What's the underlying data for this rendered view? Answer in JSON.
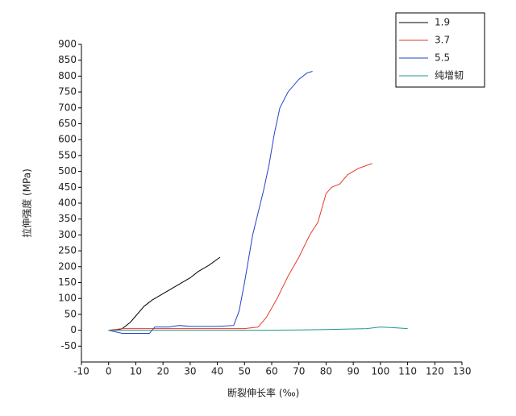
{
  "chart_data": {
    "type": "line",
    "xlabel": "断裂伸长率 (‰)",
    "ylabel": "拉伸强度 (MPa)",
    "xlim": [
      -10,
      130
    ],
    "xticks": [
      -10,
      0,
      10,
      20,
      30,
      40,
      50,
      60,
      70,
      80,
      90,
      100,
      110,
      120,
      130
    ],
    "ylim": [
      -100,
      900
    ],
    "yticks": [
      -50,
      0,
      50,
      100,
      150,
      200,
      250,
      300,
      350,
      400,
      450,
      500,
      550,
      600,
      650,
      700,
      750,
      800,
      850,
      900
    ],
    "legend": "upper right",
    "series": [
      {
        "name": "1.9",
        "color": "#000000",
        "x": [
          0,
          3,
          5,
          8,
          10,
          13,
          16,
          20,
          25,
          30,
          33,
          37,
          41
        ],
        "values": [
          0,
          0,
          5,
          25,
          45,
          75,
          95,
          115,
          140,
          165,
          185,
          205,
          230
        ]
      },
      {
        "name": "3.7",
        "color": "#e8392c",
        "x": [
          0,
          5,
          10,
          20,
          30,
          40,
          50,
          55,
          58,
          62,
          66,
          70,
          74,
          77,
          80,
          82,
          85,
          88,
          92,
          97
        ],
        "values": [
          0,
          5,
          5,
          5,
          5,
          5,
          5,
          10,
          40,
          100,
          170,
          230,
          300,
          340,
          430,
          450,
          460,
          490,
          510,
          525
        ]
      },
      {
        "name": "5.5",
        "color": "#2343c8",
        "x": [
          0,
          5,
          10,
          15,
          17,
          22,
          26,
          30,
          40,
          46,
          48,
          50,
          53,
          57,
          59,
          61,
          63,
          66,
          70,
          73,
          75
        ],
        "values": [
          0,
          -10,
          -10,
          -10,
          10,
          10,
          15,
          12,
          12,
          15,
          60,
          150,
          300,
          440,
          520,
          620,
          700,
          750,
          790,
          810,
          815
        ]
      },
      {
        "name": "纯增韧",
        "color": "#1a9a8a",
        "x": [
          0,
          10,
          40,
          60,
          80,
          95,
          100,
          105,
          110
        ],
        "values": [
          0,
          0,
          0,
          0,
          2,
          5,
          10,
          8,
          5
        ]
      }
    ]
  }
}
